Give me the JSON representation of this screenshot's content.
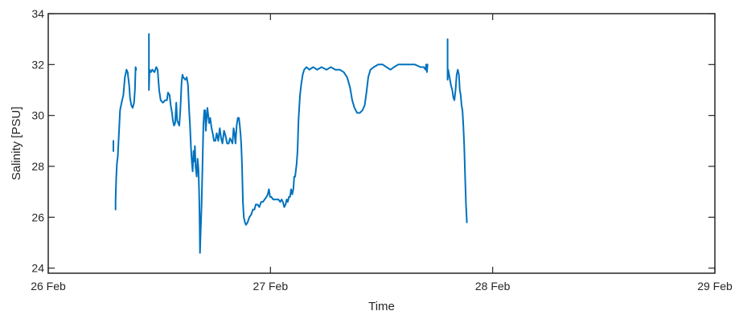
{
  "chart_data": {
    "type": "line",
    "title": "",
    "xlabel": "Time",
    "ylabel": "Salinity [PSU]",
    "xlim": [
      0,
      3
    ],
    "ylim": [
      23.8,
      34
    ],
    "x_unit": "days since 26 Feb",
    "xticks": [
      {
        "value": 0,
        "label": "26 Feb"
      },
      {
        "value": 1,
        "label": "27 Feb"
      },
      {
        "value": 2,
        "label": "28 Feb"
      },
      {
        "value": 3,
        "label": "29 Feb"
      }
    ],
    "yticks": [
      24,
      26,
      28,
      30,
      32,
      34
    ],
    "grid": false,
    "color": "#0072BD",
    "series": [
      {
        "segments": [
          [
            [
              0.293,
              29.0
            ],
            [
              0.293,
              28.8
            ],
            [
              0.293,
              28.6
            ]
          ],
          [
            [
              0.303,
              26.3
            ],
            [
              0.303,
              26.6
            ],
            [
              0.304,
              27.0
            ],
            [
              0.306,
              27.6
            ],
            [
              0.309,
              28.1
            ],
            [
              0.313,
              28.4
            ],
            [
              0.318,
              29.3
            ],
            [
              0.323,
              30.2
            ],
            [
              0.33,
              30.5
            ],
            [
              0.338,
              30.8
            ],
            [
              0.345,
              31.5
            ],
            [
              0.352,
              31.8
            ],
            [
              0.357,
              31.7
            ],
            [
              0.364,
              31.2
            ],
            [
              0.368,
              30.7
            ],
            [
              0.374,
              30.4
            ],
            [
              0.38,
              30.3
            ],
            [
              0.386,
              30.5
            ],
            [
              0.39,
              31.0
            ],
            [
              0.393,
              31.9
            ],
            [
              0.396,
              31.8
            ]
          ],
          [
            [
              0.453,
              33.2
            ],
            [
              0.453,
              32.8
            ],
            [
              0.453,
              32.4
            ],
            [
              0.453,
              32.1
            ],
            [
              0.453,
              31.7
            ],
            [
              0.453,
              31.3
            ],
            [
              0.453,
              31.0
            ],
            [
              0.456,
              31.8
            ],
            [
              0.462,
              31.7
            ],
            [
              0.468,
              31.8
            ],
            [
              0.478,
              31.7
            ],
            [
              0.486,
              31.9
            ],
            [
              0.492,
              31.8
            ],
            [
              0.499,
              31.0
            ],
            [
              0.506,
              30.6
            ],
            [
              0.516,
              30.5
            ],
            [
              0.526,
              30.6
            ],
            [
              0.534,
              30.6
            ],
            [
              0.539,
              30.9
            ],
            [
              0.546,
              30.8
            ],
            [
              0.551,
              30.4
            ],
            [
              0.557,
              30.1
            ],
            [
              0.561,
              29.8
            ],
            [
              0.566,
              29.6
            ],
            [
              0.571,
              29.7
            ],
            [
              0.576,
              30.5
            ],
            [
              0.58,
              29.8
            ],
            [
              0.585,
              29.7
            ],
            [
              0.59,
              29.6
            ],
            [
              0.595,
              30.3
            ],
            [
              0.6,
              31.3
            ],
            [
              0.604,
              31.6
            ],
            [
              0.608,
              31.5
            ],
            [
              0.617,
              31.4
            ],
            [
              0.623,
              31.5
            ],
            [
              0.629,
              31.2
            ],
            [
              0.634,
              30.2
            ],
            [
              0.638,
              29.6
            ],
            [
              0.642,
              28.8
            ],
            [
              0.646,
              28.2
            ],
            [
              0.65,
              27.8
            ],
            [
              0.654,
              28.6
            ],
            [
              0.657,
              28.2
            ],
            [
              0.66,
              28.8
            ],
            [
              0.663,
              28.0
            ],
            [
              0.668,
              27.6
            ],
            [
              0.672,
              28.3
            ],
            [
              0.676,
              27.9
            ],
            [
              0.679,
              27.0
            ],
            [
              0.681,
              26.0
            ],
            [
              0.683,
              24.6
            ],
            [
              0.686,
              25.5
            ],
            [
              0.69,
              26.5
            ],
            [
              0.694,
              28.0
            ],
            [
              0.698,
              29.6
            ],
            [
              0.702,
              30.2
            ],
            [
              0.706,
              30.2
            ],
            [
              0.709,
              29.4
            ],
            [
              0.712,
              29.8
            ],
            [
              0.716,
              30.3
            ],
            [
              0.72,
              30.0
            ],
            [
              0.724,
              29.7
            ],
            [
              0.729,
              29.9
            ],
            [
              0.735,
              29.5
            ],
            [
              0.74,
              29.3
            ],
            [
              0.746,
              29.0
            ],
            [
              0.752,
              29.0
            ],
            [
              0.758,
              29.3
            ],
            [
              0.765,
              29.0
            ],
            [
              0.772,
              29.5
            ],
            [
              0.778,
              29.1
            ],
            [
              0.784,
              28.9
            ],
            [
              0.791,
              29.4
            ],
            [
              0.798,
              29.2
            ],
            [
              0.805,
              28.9
            ],
            [
              0.812,
              28.9
            ],
            [
              0.818,
              29.1
            ],
            [
              0.824,
              29.0
            ],
            [
              0.829,
              28.9
            ],
            [
              0.834,
              29.5
            ],
            [
              0.838,
              29.3
            ],
            [
              0.843,
              28.9
            ],
            [
              0.848,
              29.6
            ],
            [
              0.853,
              29.9
            ],
            [
              0.858,
              29.9
            ],
            [
              0.862,
              29.6
            ],
            [
              0.866,
              29.2
            ],
            [
              0.869,
              28.8
            ],
            [
              0.872,
              28.0
            ],
            [
              0.876,
              26.6
            ],
            [
              0.88,
              26.0
            ],
            [
              0.885,
              25.8
            ],
            [
              0.89,
              25.7
            ],
            [
              0.897,
              25.8
            ],
            [
              0.905,
              26.0
            ],
            [
              0.913,
              26.1
            ],
            [
              0.921,
              26.3
            ],
            [
              0.928,
              26.3
            ],
            [
              0.934,
              26.5
            ],
            [
              0.942,
              26.5
            ],
            [
              0.95,
              26.4
            ],
            [
              0.958,
              26.6
            ],
            [
              0.966,
              26.6
            ],
            [
              0.974,
              26.7
            ],
            [
              0.982,
              26.8
            ],
            [
              0.988,
              26.9
            ],
            [
              0.993,
              27.1
            ],
            [
              0.998,
              26.8
            ],
            [
              1.004,
              26.8
            ],
            [
              1.012,
              26.7
            ],
            [
              1.02,
              26.7
            ],
            [
              1.028,
              26.7
            ],
            [
              1.036,
              26.7
            ],
            [
              1.044,
              26.6
            ],
            [
              1.05,
              26.7
            ],
            [
              1.056,
              26.6
            ],
            [
              1.062,
              26.4
            ],
            [
              1.068,
              26.5
            ],
            [
              1.073,
              26.7
            ],
            [
              1.078,
              26.6
            ],
            [
              1.083,
              26.8
            ],
            [
              1.088,
              26.8
            ],
            [
              1.093,
              27.1
            ],
            [
              1.098,
              26.9
            ],
            [
              1.103,
              27.1
            ],
            [
              1.107,
              27.6
            ],
            [
              1.111,
              27.6
            ],
            [
              1.114,
              27.8
            ],
            [
              1.118,
              28.1
            ],
            [
              1.122,
              28.6
            ],
            [
              1.126,
              29.8
            ],
            [
              1.13,
              30.4
            ],
            [
              1.133,
              30.8
            ],
            [
              1.138,
              31.2
            ],
            [
              1.145,
              31.6
            ],
            [
              1.152,
              31.8
            ],
            [
              1.162,
              31.9
            ],
            [
              1.175,
              31.8
            ],
            [
              1.192,
              31.9
            ],
            [
              1.21,
              31.8
            ],
            [
              1.23,
              31.9
            ],
            [
              1.252,
              31.8
            ],
            [
              1.272,
              31.9
            ],
            [
              1.292,
              31.8
            ],
            [
              1.312,
              31.8
            ],
            [
              1.33,
              31.7
            ],
            [
              1.345,
              31.5
            ],
            [
              1.358,
              31.1
            ],
            [
              1.368,
              30.6
            ],
            [
              1.378,
              30.3
            ],
            [
              1.39,
              30.1
            ],
            [
              1.402,
              30.1
            ],
            [
              1.414,
              30.2
            ],
            [
              1.424,
              30.4
            ],
            [
              1.432,
              30.9
            ],
            [
              1.44,
              31.5
            ],
            [
              1.45,
              31.8
            ],
            [
              1.465,
              31.9
            ],
            [
              1.485,
              32.0
            ],
            [
              1.505,
              32.0
            ],
            [
              1.522,
              31.9
            ],
            [
              1.54,
              31.8
            ],
            [
              1.556,
              31.9
            ],
            [
              1.575,
              32.0
            ],
            [
              1.6,
              32.0
            ],
            [
              1.625,
              32.0
            ],
            [
              1.65,
              32.0
            ],
            [
              1.675,
              31.9
            ],
            [
              1.69,
              31.9
            ],
            [
              1.698,
              31.8
            ],
            [
              1.701,
              32.0
            ],
            [
              1.704,
              31.7
            ],
            [
              1.707,
              32.0
            ]
          ],
          [
            [
              1.797,
              33.0
            ],
            [
              1.797,
              32.7
            ],
            [
              1.797,
              32.4
            ],
            [
              1.797,
              32.2
            ],
            [
              1.797,
              31.9
            ],
            [
              1.797,
              31.6
            ],
            [
              1.797,
              31.4
            ],
            [
              1.8,
              31.8
            ],
            [
              1.806,
              31.5
            ],
            [
              1.812,
              31.2
            ],
            [
              1.818,
              31.0
            ],
            [
              1.823,
              30.7
            ],
            [
              1.828,
              30.6
            ],
            [
              1.833,
              31.0
            ],
            [
              1.838,
              31.6
            ],
            [
              1.843,
              31.8
            ],
            [
              1.848,
              31.6
            ],
            [
              1.852,
              31.0
            ],
            [
              1.856,
              30.8
            ],
            [
              1.86,
              30.4
            ],
            [
              1.864,
              30.2
            ],
            [
              1.868,
              29.6
            ],
            [
              1.872,
              28.8
            ],
            [
              1.876,
              27.6
            ],
            [
              1.88,
              26.5
            ],
            [
              1.884,
              25.8
            ]
          ]
        ]
      }
    ]
  }
}
